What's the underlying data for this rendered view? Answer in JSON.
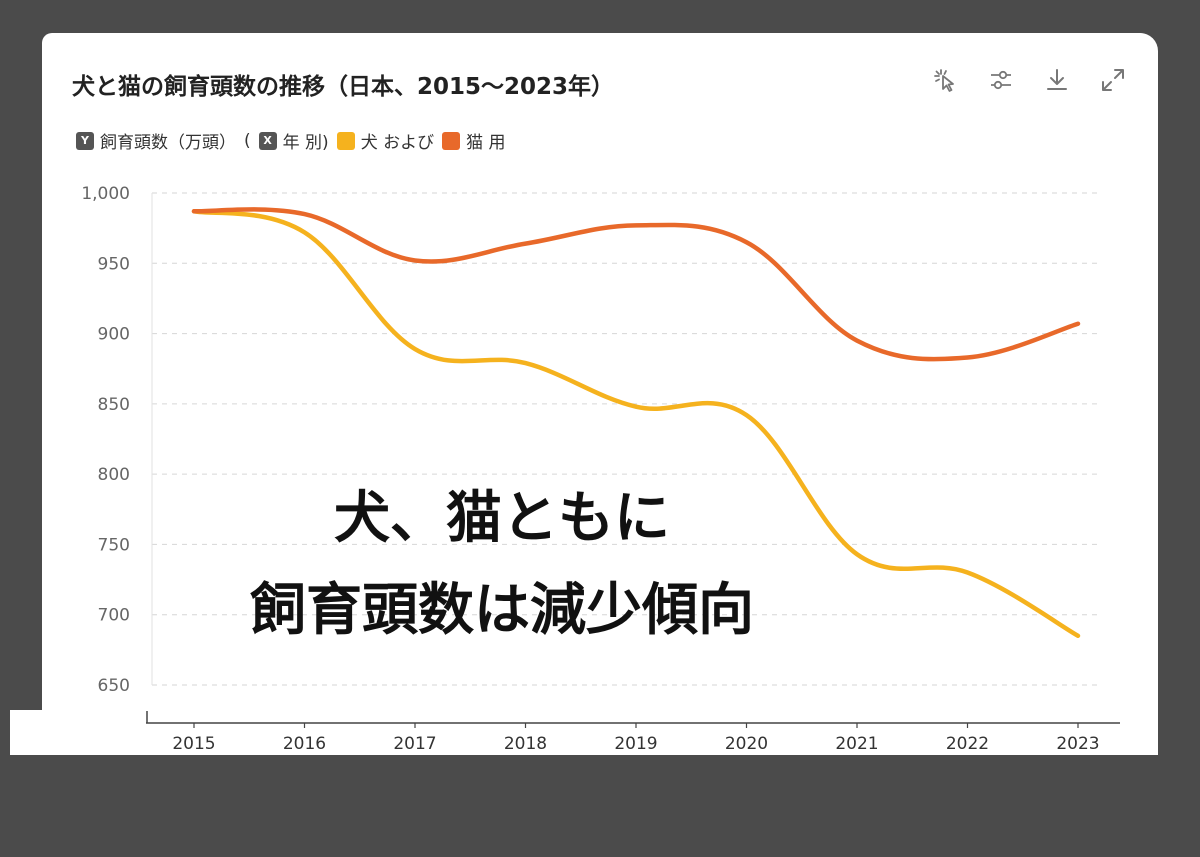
{
  "header": {
    "title": "犬と猫の飼育頭数の推移（日本、2015〜2023年）",
    "tools": [
      "select-icon",
      "sliders-icon",
      "download-icon",
      "expand-icon"
    ]
  },
  "legend": {
    "y_badge": "Y",
    "y_label": "飼育頭数（万頭）",
    "paren_open": "(",
    "x_badge": "X",
    "x_label": "年 別)",
    "series_1": "犬 および",
    "series_2": "猫 用"
  },
  "annotation": {
    "line1": "犬、猫ともに",
    "line2": "飼育頭数は減少傾向"
  },
  "colors": {
    "dog": "#F5B21E",
    "cat": "#E8692A"
  },
  "chart_data": {
    "type": "line",
    "title": "犬と猫の飼育頭数の推移（日本、2015〜2023年）",
    "xlabel": "年",
    "ylabel": "飼育頭数（万頭）",
    "categories": [
      "2015",
      "2016",
      "2017",
      "2018",
      "2019",
      "2020",
      "2021",
      "2022",
      "2023"
    ],
    "y_ticks": [
      "650",
      "700",
      "750",
      "800",
      "850",
      "900",
      "950",
      "1,000"
    ],
    "ylim": [
      640,
      1000
    ],
    "grid": true,
    "series": [
      {
        "name": "犬 および",
        "color": "#F5B21E",
        "values": [
          987,
          972,
          889,
          879,
          848,
          842,
          743,
          730,
          685
        ]
      },
      {
        "name": "猫 用",
        "color": "#E8692A",
        "values": [
          987,
          985,
          952,
          964,
          977,
          965,
          895,
          883,
          907
        ]
      }
    ]
  }
}
